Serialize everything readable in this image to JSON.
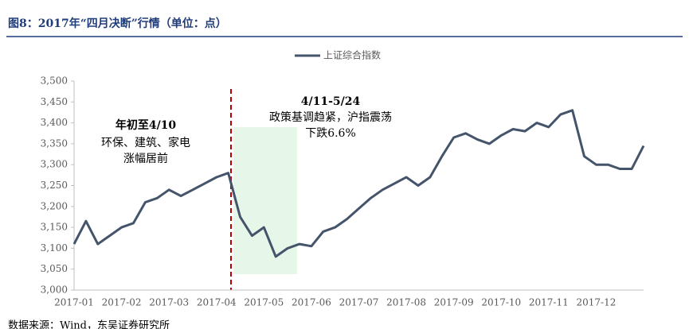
{
  "chart_data": {
    "type": "line",
    "title": "图8：2017年“四月决断”行情（单位：点）",
    "categories": [
      "2017-01",
      null,
      null,
      null,
      "2017-02",
      null,
      null,
      null,
      "2017-03",
      null,
      null,
      null,
      "2017-04",
      null,
      null,
      null,
      "2017-05",
      null,
      null,
      null,
      "2017-06",
      null,
      null,
      null,
      "2017-07",
      null,
      null,
      null,
      "2017-08",
      null,
      null,
      null,
      "2017-09",
      null,
      null,
      null,
      "2017-10",
      null,
      null,
      null,
      "2017-11",
      null,
      null,
      null,
      "2017-12",
      null,
      null,
      null,
      null
    ],
    "series": [
      {
        "name": "上证综合指数",
        "color": "#44546a",
        "values": [
          3110,
          3165,
          3110,
          3130,
          3150,
          3160,
          3210,
          3220,
          3240,
          3225,
          3240,
          3255,
          3270,
          3280,
          3175,
          3130,
          3150,
          3080,
          3100,
          3110,
          3105,
          3140,
          3150,
          3170,
          3195,
          3220,
          3240,
          3255,
          3270,
          3250,
          3270,
          3320,
          3365,
          3375,
          3360,
          3350,
          3370,
          3385,
          3380,
          3400,
          3390,
          3420,
          3430,
          3320,
          3300,
          3300,
          3290,
          3290,
          3345
        ]
      }
    ],
    "ylim": [
      3000,
      3500
    ],
    "yticks": [
      {
        "value": 3000,
        "label": "3,000"
      },
      {
        "value": 3050,
        "label": "3,050"
      },
      {
        "value": 3100,
        "label": "3,100"
      },
      {
        "value": 3150,
        "label": "3,150"
      },
      {
        "value": 3200,
        "label": "3,200"
      },
      {
        "value": 3250,
        "label": "3,250"
      },
      {
        "value": 3300,
        "label": "3,300"
      },
      {
        "value": 3350,
        "label": "3,350"
      },
      {
        "value": 3400,
        "label": "3,400"
      },
      {
        "value": 3450,
        "label": "3,450"
      },
      {
        "value": 3500,
        "label": "3,500"
      }
    ],
    "grid": false,
    "legend": "top",
    "annotations": [
      "年初至4/10",
      "环保、建筑、家电",
      "涨幅居前",
      "4/11-5/24",
      "政策基调趋紧，沪指震荡",
      "下跌6.6%"
    ],
    "source": "数据来源：Wind，东吴证券研究所"
  }
}
